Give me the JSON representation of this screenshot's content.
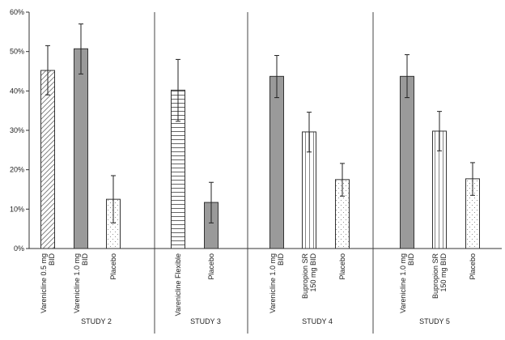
{
  "chart_data": {
    "type": "bar",
    "ylim": [
      0,
      60
    ],
    "yticks": [
      0,
      10,
      20,
      30,
      40,
      50,
      60
    ],
    "ytick_labels": [
      "0%",
      "10%",
      "20%",
      "30%",
      "40%",
      "50%",
      "60%"
    ],
    "grid": false,
    "error_bars": true,
    "studies": [
      {
        "label": "STUDY 2",
        "bars": [
          {
            "category": "Varenicline 0.5 mg BID",
            "lines": [
              "Varenicline 0.5 mg",
              "BID"
            ],
            "value": 45.2,
            "err_low": 39.0,
            "err_high": 51.5,
            "pattern": "diagonal"
          },
          {
            "category": "Varenicline 1.0 mg BID",
            "lines": [
              "Varenicline 1.0 mg",
              "BID"
            ],
            "value": 50.7,
            "err_low": 44.3,
            "err_high": 57.0,
            "pattern": "solid"
          },
          {
            "category": "Placebo",
            "lines": [
              "Placebo"
            ],
            "value": 12.5,
            "err_low": 6.5,
            "err_high": 18.5,
            "pattern": "dots"
          }
        ]
      },
      {
        "label": "STUDY 3",
        "bars": [
          {
            "category": "Varenicline Flexible",
            "lines": [
              "Varenicline Flexible"
            ],
            "value": 40.2,
            "err_low": 32.3,
            "err_high": 48.0,
            "pattern": "horizontal"
          },
          {
            "category": "Placebo",
            "lines": [
              "Placebo"
            ],
            "value": 11.7,
            "err_low": 6.5,
            "err_high": 16.8,
            "pattern": "solid"
          }
        ]
      },
      {
        "label": "STUDY 4",
        "bars": [
          {
            "category": "Varenicline 1.0 mg BID",
            "lines": [
              "Varenicline 1.0 mg",
              "BID"
            ],
            "value": 43.7,
            "err_low": 38.3,
            "err_high": 49.0,
            "pattern": "solid"
          },
          {
            "category": "Bupropion SR 150 mg BID",
            "lines": [
              "Bupropion SR",
              "150 mg BID"
            ],
            "value": 29.6,
            "err_low": 24.5,
            "err_high": 34.6,
            "pattern": "vertical"
          },
          {
            "category": "Placebo",
            "lines": [
              "Placebo"
            ],
            "value": 17.5,
            "err_low": 13.3,
            "err_high": 21.6,
            "pattern": "dots"
          }
        ]
      },
      {
        "label": "STUDY 5",
        "bars": [
          {
            "category": "Varenicline 1.0 mg BID",
            "lines": [
              "Varenicline 1.0 mg",
              "BID"
            ],
            "value": 43.7,
            "err_low": 38.3,
            "err_high": 49.2,
            "pattern": "solid"
          },
          {
            "category": "Bupropion SR 150 mg BID",
            "lines": [
              "Bupropion SR",
              "150 mg BID"
            ],
            "value": 29.8,
            "err_low": 24.8,
            "err_high": 34.8,
            "pattern": "vertical"
          },
          {
            "category": "Placebo",
            "lines": [
              "Placebo"
            ],
            "value": 17.7,
            "err_low": 13.5,
            "err_high": 21.8,
            "pattern": "dots"
          }
        ]
      }
    ]
  }
}
